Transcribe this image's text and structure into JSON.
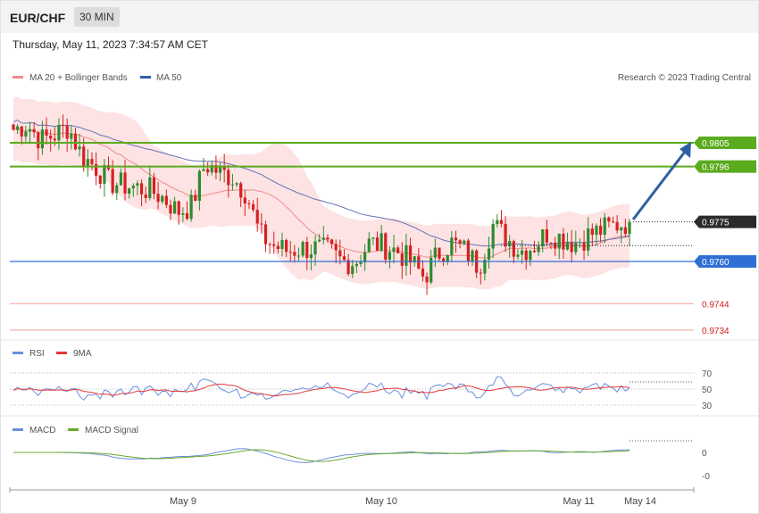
{
  "header": {
    "pair": "EUR/CHF",
    "timeframe": "30 MIN"
  },
  "datetime": "Thursday, May 11, 2023 7:34:57 AM CET",
  "legend": {
    "ma20_bollinger": "MA 20 + Bollinger Bands",
    "ma50": "MA 50",
    "copyright": "Research © 2023 Trading Central"
  },
  "colors": {
    "resistance": "#5aab1e",
    "support": "#2f6fd4",
    "secondary_support": "#e05a5a",
    "current": "#2b2b2b",
    "arrow": "#2e5fa3",
    "bullish": "#2e8b2e",
    "bearish": "#d62020",
    "bollinger_fill": "#fde3e3",
    "ma20": "#f08a8a",
    "ma50": "#6670b8",
    "rsi": "#6b8fe0",
    "rsi_ma": "#e23a3a",
    "macd": "#6b8fe0",
    "macd_signal": "#6aaa2a"
  },
  "levels": [
    {
      "value": 0.9805,
      "label": "0.9805",
      "kind": "resistance"
    },
    {
      "value": 0.9796,
      "label": "0.9796",
      "kind": "resistance"
    },
    {
      "value": 0.9775,
      "label": "0.9775",
      "kind": "current"
    },
    {
      "value": 0.976,
      "label": "0.9760",
      "kind": "support"
    },
    {
      "value": 0.9744,
      "label": "0.9744",
      "kind": "secondary_support"
    },
    {
      "value": 0.9734,
      "label": "0.9734",
      "kind": "secondary_support"
    }
  ],
  "x_ticks": [
    "May 9",
    "May 10",
    "May 11",
    "May 14"
  ],
  "rsi": {
    "label": "RSI",
    "ma_label": "9MA",
    "ticks": [
      "70",
      "50",
      "30"
    ]
  },
  "macd": {
    "label": "MACD",
    "signal_label": "MACD Signal",
    "ticks": [
      "0",
      "-0"
    ]
  },
  "chart_data": {
    "type": "candlestick",
    "title": "EUR/CHF",
    "timeframe": "30 MIN",
    "y_range": [
      0.9742,
      0.9816
    ],
    "price_path": [
      0.981,
      0.9812,
      0.9806,
      0.9808,
      0.9811,
      0.98,
      0.9796,
      0.979,
      0.9789,
      0.9788,
      0.9787,
      0.9784,
      0.9779,
      0.9781,
      0.9797,
      0.9794,
      0.9792,
      0.9786,
      0.977,
      0.9766,
      0.9764,
      0.9765,
      0.9765,
      0.9764,
      0.976,
      0.976,
      0.9767,
      0.9766,
      0.9764,
      0.976,
      0.9754,
      0.9763,
      0.9767,
      0.9764,
      0.9758,
      0.9774,
      0.9769,
      0.9764,
      0.9766,
      0.9771,
      0.9769,
      0.9767,
      0.977,
      0.9772,
      0.9774,
      0.9775
    ],
    "projection": {
      "from": 0.9775,
      "to": 0.9805,
      "direction": "up"
    },
    "rsi_range": [
      30,
      70
    ]
  }
}
